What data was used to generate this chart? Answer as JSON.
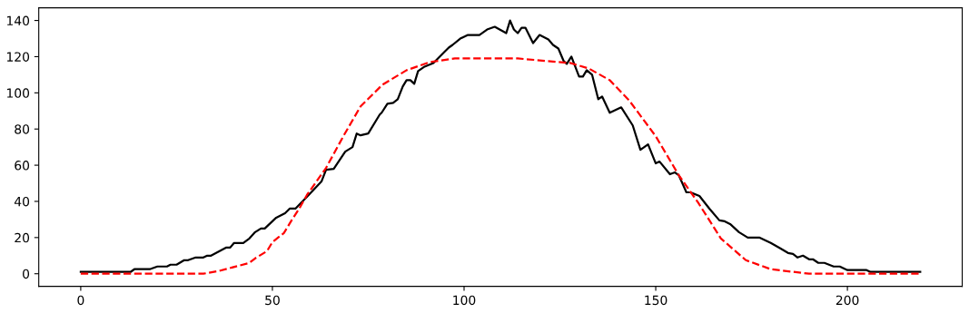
{
  "chart_data": {
    "type": "line",
    "xlim": [
      -10.95,
      229.95
    ],
    "ylim": [
      -7,
      147
    ],
    "xticks": [
      0,
      50,
      100,
      150,
      200
    ],
    "yticks": [
      0,
      20,
      40,
      60,
      80,
      100,
      120,
      140
    ],
    "grid": false,
    "legend": false,
    "marker": "none",
    "series": [
      {
        "color": "#000000",
        "line_style": "solid",
        "x": [
          0,
          13,
          14,
          18,
          20,
          22.5,
          23.4,
          25,
          27,
          28,
          30,
          32,
          33,
          34,
          38,
          39,
          40,
          42.4,
          44,
          45.5,
          47,
          48,
          51,
          53.3,
          54.5,
          56,
          59,
          62.8,
          64,
          66,
          69,
          70.9,
          72,
          73,
          75,
          78,
          78.5,
          80,
          81.5,
          82.7,
          84,
          85,
          86,
          87,
          88,
          89.7,
          92,
          93.4,
          94.8,
          96,
          97,
          99,
          101,
          104,
          106,
          108,
          111,
          112,
          113,
          114,
          115,
          116,
          118,
          119.7,
          122,
          123.2,
          124.6,
          126,
          126.8,
          128,
          130,
          131,
          132,
          133.4,
          135,
          136,
          138,
          141,
          144,
          146,
          148,
          150,
          151,
          153.7,
          155,
          156,
          158,
          159,
          161.4,
          164,
          166.6,
          168,
          169.4,
          171.7,
          174,
          177,
          180,
          182.5,
          184.5,
          185.8,
          187,
          188.4,
          190,
          191,
          192.4,
          194,
          196.4,
          198,
          200,
          205,
          206,
          219
        ],
        "values": [
          1,
          1,
          2.5,
          2.5,
          4,
          4,
          5,
          5,
          7.5,
          7.5,
          9,
          9,
          10,
          10,
          14.5,
          14.5,
          17,
          17,
          19.5,
          23,
          25,
          25,
          31,
          33.5,
          36,
          36,
          42.5,
          51,
          57.5,
          58,
          67.5,
          70,
          77.5,
          76.5,
          77.5,
          88,
          89,
          94,
          94.5,
          96.5,
          103.5,
          107,
          107,
          105,
          112,
          114.5,
          116.5,
          119.5,
          122.5,
          125,
          126.5,
          130,
          132,
          132,
          135,
          136.5,
          133,
          140,
          135,
          133,
          136,
          136,
          127.5,
          132,
          129.5,
          126.5,
          124.5,
          117.5,
          116,
          120,
          109,
          109,
          112.5,
          110,
          96.5,
          98,
          89,
          92,
          82,
          68.5,
          71.5,
          61,
          62,
          55,
          56,
          54.5,
          45,
          45,
          43,
          36,
          29.5,
          29,
          27.5,
          23,
          20,
          20,
          17,
          14,
          11.5,
          11,
          9,
          10,
          8,
          8,
          6,
          6,
          4,
          4,
          2,
          2,
          1,
          1
        ]
      },
      {
        "color": "#ff0000",
        "line_style": "dashed",
        "x": [
          0,
          32,
          36,
          44,
          45.5,
          48.6,
          50,
          53,
          55,
          57,
          59,
          64,
          68.5,
          73,
          78.7,
          85,
          91,
          97.6,
          114,
          127.7,
          132.5,
          138,
          143,
          150,
          156,
          161,
          167,
          173.5,
          180,
          190,
          219
        ],
        "values": [
          0,
          0,
          1.5,
          6,
          8.5,
          12.5,
          17.5,
          22.5,
          29.5,
          36,
          43.5,
          58.5,
          76,
          92.5,
          104.5,
          112.5,
          117,
          119,
          119,
          116.5,
          113.5,
          107,
          96,
          76,
          54.5,
          39.5,
          19.5,
          7.5,
          2.5,
          0,
          0
        ]
      }
    ]
  }
}
